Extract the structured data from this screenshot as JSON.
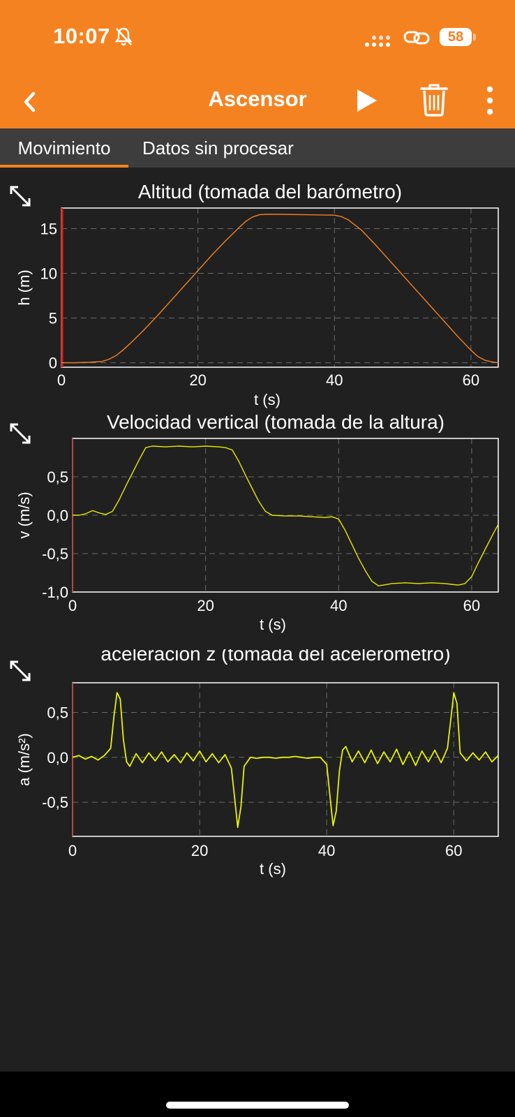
{
  "status_bar": {
    "time": "10:07",
    "battery": "58"
  },
  "toolbar": {
    "title": "Ascensor"
  },
  "tabs": [
    {
      "label": "Movimiento"
    },
    {
      "label": "Datos sin procesar"
    }
  ],
  "colors": {
    "accent": "#F58220",
    "background": "#202020",
    "altitude_line": "#F58220",
    "velocity_line": "#E8E800",
    "acceleration_line": "#E6F500",
    "cursor": "#E02020"
  },
  "chart_data": [
    {
      "type": "line",
      "title": "Altitud (tomada del barómetro)",
      "xlabel": "t (s)",
      "ylabel": "h (m)",
      "xlim": [
        0,
        64
      ],
      "ylim": [
        -0.5,
        17.3
      ],
      "xticks": [
        0,
        20,
        40,
        60
      ],
      "yticks": [
        0,
        5,
        10,
        15
      ],
      "ytick_labels": [
        "0",
        "5",
        "10",
        "15"
      ],
      "grid": true,
      "x": [
        0,
        2,
        4,
        6,
        7,
        8,
        9,
        10,
        12,
        14,
        16,
        18,
        20,
        22,
        24,
        26,
        27,
        28,
        29,
        30,
        32,
        36,
        40,
        41,
        42,
        43,
        44,
        46,
        48,
        50,
        52,
        54,
        56,
        58,
        60,
        61,
        62,
        63,
        64
      ],
      "y": [
        0.0,
        0.0,
        0.05,
        0.15,
        0.4,
        0.8,
        1.4,
        2.1,
        3.6,
        5.2,
        6.9,
        8.6,
        10.3,
        12.0,
        13.6,
        15.1,
        15.8,
        16.3,
        16.55,
        16.6,
        16.6,
        16.55,
        16.5,
        16.35,
        16.0,
        15.4,
        14.8,
        13.2,
        11.5,
        9.8,
        8.1,
        6.4,
        4.7,
        3.0,
        1.4,
        0.7,
        0.3,
        0.1,
        0.0
      ]
    },
    {
      "type": "line",
      "title": "Velocidad vertical (tomada de la altura)",
      "xlabel": "t (s)",
      "ylabel": "v (m/s)",
      "xlim": [
        0,
        64
      ],
      "ylim": [
        -1.0,
        1.0
      ],
      "xticks": [
        0,
        20,
        40,
        60
      ],
      "yticks": [
        0.5,
        0.0,
        -0.5,
        -1.0
      ],
      "ytick_labels": [
        "0,5",
        "0,0",
        "-0,5",
        "-1,0"
      ],
      "grid": true,
      "x": [
        0,
        1,
        2,
        3,
        4,
        5,
        6,
        7,
        8,
        9,
        10,
        11,
        12,
        14,
        16,
        18,
        20,
        22,
        23,
        24,
        25,
        26,
        27,
        28,
        29,
        30,
        32,
        34,
        36,
        38,
        39,
        40,
        41,
        42,
        43,
        44,
        45,
        46,
        48,
        50,
        52,
        54,
        56,
        57,
        58,
        59,
        60,
        61,
        62,
        63,
        64
      ],
      "y": [
        0.0,
        0.0,
        0.02,
        0.06,
        0.03,
        0.01,
        0.05,
        0.2,
        0.38,
        0.55,
        0.72,
        0.88,
        0.9,
        0.89,
        0.9,
        0.89,
        0.9,
        0.89,
        0.88,
        0.85,
        0.7,
        0.52,
        0.35,
        0.18,
        0.05,
        0.0,
        -0.01,
        -0.01,
        -0.02,
        -0.03,
        -0.02,
        -0.05,
        -0.2,
        -0.38,
        -0.56,
        -0.72,
        -0.86,
        -0.92,
        -0.89,
        -0.88,
        -0.89,
        -0.88,
        -0.89,
        -0.9,
        -0.91,
        -0.89,
        -0.8,
        -0.62,
        -0.45,
        -0.28,
        -0.12
      ]
    },
    {
      "type": "line",
      "title": "aceleración z (tomada del acelerómetro)",
      "xlabel": "t (s)",
      "ylabel": "a (m/s²)",
      "xlim": [
        0,
        67
      ],
      "ylim": [
        -0.88,
        0.83
      ],
      "xticks": [
        0,
        20,
        40,
        60
      ],
      "yticks": [
        0.5,
        0.0,
        -0.5
      ],
      "ytick_labels": [
        "0,5",
        "0,0",
        "-0,5"
      ],
      "grid": true,
      "x": [
        0,
        1,
        2,
        3,
        4,
        5,
        6,
        6.5,
        7,
        7.5,
        8,
        8.5,
        9,
        10,
        11,
        12,
        13,
        14,
        15,
        16,
        17,
        18,
        19,
        20,
        21,
        22,
        23,
        24,
        25,
        25.5,
        26,
        26.5,
        27,
        28,
        29,
        30,
        31,
        32,
        33,
        34,
        35,
        36,
        37,
        38,
        39,
        40,
        40.5,
        41,
        41.5,
        42,
        42.5,
        43,
        44,
        45,
        46,
        47,
        48,
        49,
        50,
        51,
        52,
        53,
        54,
        55,
        56,
        57,
        58,
        59,
        59.5,
        60,
        60.5,
        61,
        62,
        63,
        64,
        65,
        66,
        67
      ],
      "y": [
        0.0,
        0.02,
        -0.02,
        0.01,
        -0.03,
        0.02,
        0.1,
        0.45,
        0.72,
        0.65,
        0.2,
        -0.05,
        -0.1,
        0.04,
        -0.06,
        0.05,
        -0.04,
        0.06,
        -0.05,
        0.03,
        -0.06,
        0.05,
        -0.04,
        0.07,
        -0.05,
        0.04,
        -0.06,
        0.03,
        -0.12,
        -0.45,
        -0.78,
        -0.55,
        -0.1,
        0.0,
        -0.01,
        0.0,
        0.0,
        -0.01,
        0.0,
        0.0,
        0.01,
        0.0,
        -0.01,
        0.0,
        0.0,
        -0.08,
        -0.42,
        -0.76,
        -0.6,
        -0.15,
        0.08,
        0.12,
        -0.05,
        0.07,
        -0.06,
        0.08,
        -0.07,
        0.06,
        -0.05,
        0.09,
        -0.08,
        0.06,
        -0.09,
        0.07,
        -0.05,
        0.08,
        -0.06,
        0.1,
        0.4,
        0.72,
        0.6,
        0.05,
        -0.04,
        0.05,
        -0.03,
        0.06,
        -0.05,
        0.02
      ]
    }
  ]
}
